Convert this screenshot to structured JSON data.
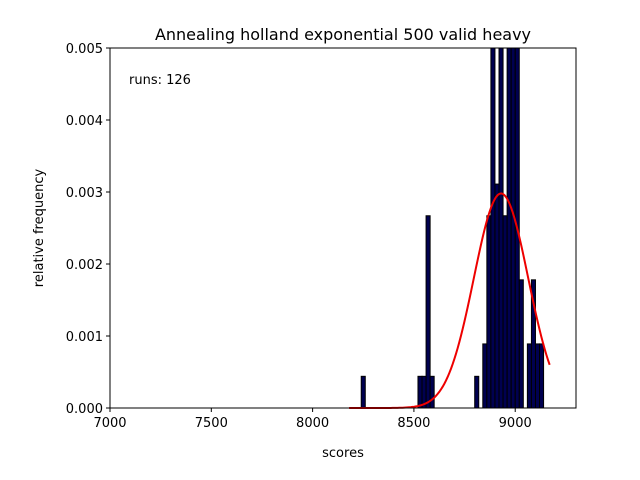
{
  "chart_data": {
    "type": "bar",
    "title": "Annealing holland exponential 500 valid heavy",
    "xlabel": "scores",
    "ylabel": "relative frequency",
    "annotation": "runs: 126",
    "xlim": [
      7000,
      9300
    ],
    "ylim": [
      0,
      0.005
    ],
    "xticks": [
      7000,
      7500,
      8000,
      8500,
      9000
    ],
    "xtick_labels": [
      "7000",
      "7500",
      "8000",
      "8500",
      "9000"
    ],
    "yticks": [
      0,
      0.001,
      0.002,
      0.003,
      0.004,
      0.005
    ],
    "ytick_labels": [
      "0.000",
      "0.001",
      "0.002",
      "0.003",
      "0.004",
      "0.005"
    ],
    "bar_color": "#000050",
    "bar_edge_color": "#000000",
    "curve_color": "#ee0000",
    "bins": [
      {
        "x0": 8240,
        "x1": 8260,
        "value": 0.00044
      },
      {
        "x0": 8520,
        "x1": 8540,
        "value": 0.00044
      },
      {
        "x0": 8540,
        "x1": 8560,
        "value": 0.00044
      },
      {
        "x0": 8560,
        "x1": 8580,
        "value": 0.00267
      },
      {
        "x0": 8580,
        "x1": 8600,
        "value": 0.00044
      },
      {
        "x0": 8800,
        "x1": 8820,
        "value": 0.00044
      },
      {
        "x0": 8840,
        "x1": 8860,
        "value": 0.00089
      },
      {
        "x0": 8860,
        "x1": 8880,
        "value": 0.00267
      },
      {
        "x0": 8880,
        "x1": 8900,
        "value": 0.005
      },
      {
        "x0": 8900,
        "x1": 8920,
        "value": 0.00311
      },
      {
        "x0": 8920,
        "x1": 8940,
        "value": 0.005
      },
      {
        "x0": 8940,
        "x1": 8960,
        "value": 0.00267
      },
      {
        "x0": 8960,
        "x1": 8980,
        "value": 0.005
      },
      {
        "x0": 8980,
        "x1": 9000,
        "value": 0.005
      },
      {
        "x0": 9000,
        "x1": 9020,
        "value": 0.005
      },
      {
        "x0": 9020,
        "x1": 9040,
        "value": 0.00178
      },
      {
        "x0": 9060,
        "x1": 9080,
        "value": 0.00089
      },
      {
        "x0": 9080,
        "x1": 9100,
        "value": 0.00178
      },
      {
        "x0": 9100,
        "x1": 9120,
        "value": 0.00089
      },
      {
        "x0": 9120,
        "x1": 9140,
        "value": 0.00089
      }
    ],
    "fit_curve": {
      "mean": 8930,
      "std": 134,
      "peak": 0.00298,
      "x_start": 8180,
      "x_end": 9170
    }
  }
}
